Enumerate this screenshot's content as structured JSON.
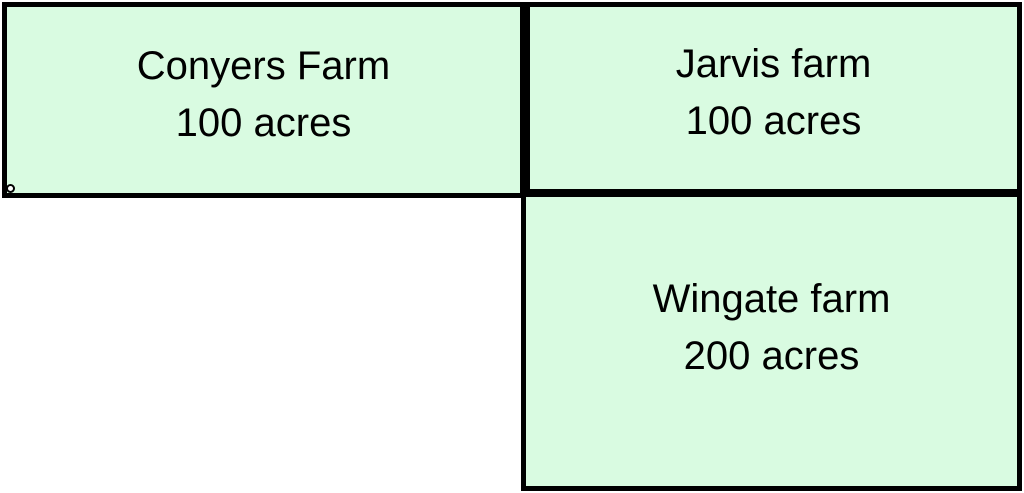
{
  "figure": {
    "colors": {
      "fill": "#d9fbe1",
      "border": "#000000",
      "background": "#ffffff",
      "text": "#000000"
    },
    "farms": [
      {
        "name": "Conyers Farm",
        "acres": "100 acres"
      },
      {
        "name": "Jarvis farm",
        "acres": "100 acres"
      },
      {
        "name": "Wingate farm",
        "acres": "200 acres"
      }
    ]
  }
}
